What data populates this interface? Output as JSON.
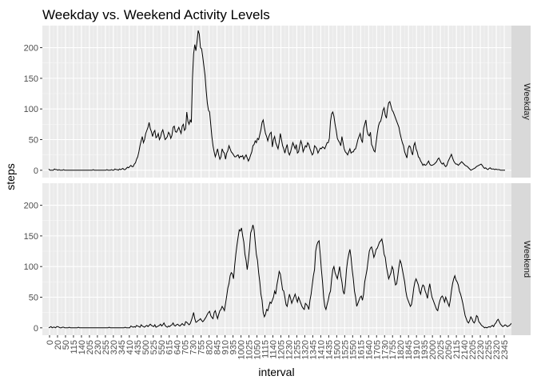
{
  "chart_data": {
    "type": "line",
    "title": "Weekday vs. Weekend Activity Levels",
    "xlabel": "interval",
    "ylabel": "steps",
    "ylim": [
      -12,
      236
    ],
    "y_ticks": [
      0,
      50,
      100,
      150,
      200
    ],
    "x_ticks": [
      "0",
      "20",
      "50",
      "115",
      "140",
      "205",
      "230",
      "255",
      "320",
      "345",
      "410",
      "435",
      "500",
      "525",
      "550",
      "615",
      "640",
      "705",
      "730",
      "755",
      "820",
      "845",
      "910",
      "935",
      "1000",
      "1025",
      "1050",
      "1115",
      "1140",
      "1205",
      "1230",
      "1255",
      "1320",
      "1345",
      "1410",
      "1435",
      "1500",
      "1525",
      "1550",
      "1615",
      "1640",
      "1705",
      "1730",
      "1755",
      "1820",
      "1845",
      "1910",
      "1935",
      "2000",
      "2025",
      "2050",
      "2115",
      "2140",
      "2205",
      "2230",
      "2255",
      "2320",
      "2345"
    ],
    "grid": true,
    "facets": [
      "Weekday",
      "Weekend"
    ],
    "series": [
      {
        "facet": "Weekday",
        "values": [
          2,
          0,
          0,
          0,
          0,
          2,
          1,
          1,
          0,
          1,
          0,
          0,
          0,
          1,
          0,
          0,
          0,
          0,
          0,
          0,
          0,
          0,
          0,
          0,
          0,
          0,
          0,
          0,
          0,
          0,
          0,
          0,
          0,
          0,
          0,
          0,
          0,
          0,
          0,
          1,
          0,
          0,
          0,
          0,
          0,
          0,
          0,
          0,
          0,
          0,
          0,
          1,
          0,
          0,
          0,
          1,
          0,
          0,
          2,
          1,
          1,
          0,
          2,
          1,
          2,
          3,
          1,
          1,
          3,
          5,
          4,
          6,
          8,
          6,
          6,
          10,
          12,
          18,
          22,
          30,
          40,
          48,
          55,
          45,
          50,
          60,
          65,
          70,
          78,
          68,
          63,
          55,
          62,
          65,
          53,
          55,
          60,
          50,
          54,
          62,
          66,
          58,
          50,
          52,
          55,
          62,
          59,
          52,
          57,
          70,
          72,
          63,
          62,
          66,
          70,
          65,
          60,
          72,
          75,
          65,
          68,
          95,
          80,
          75,
          82,
          78,
          150,
          190,
          205,
          195,
          210,
          228,
          222,
          200,
          198,
          185,
          170,
          155,
          130,
          110,
          98,
          95,
          75,
          55,
          40,
          30,
          22,
          28,
          35,
          25,
          18,
          22,
          35,
          30,
          28,
          18,
          28,
          32,
          40,
          35,
          30,
          28,
          25,
          22,
          22,
          24,
          25,
          20,
          23,
          22,
          24,
          18,
          22,
          25,
          20,
          15,
          19,
          25,
          30,
          40,
          42,
          48,
          45,
          52,
          50,
          58,
          66,
          78,
          82,
          70,
          60,
          55,
          48,
          55,
          60,
          62,
          38,
          50,
          55,
          45,
          40,
          35,
          45,
          60,
          50,
          40,
          35,
          28,
          36,
          42,
          30,
          25,
          30,
          38,
          45,
          40,
          35,
          42,
          28,
          30,
          40,
          48,
          42,
          30,
          35,
          40,
          38,
          45,
          42,
          35,
          30,
          25,
          28,
          40,
          38,
          35,
          28,
          32,
          36,
          35,
          38,
          37,
          35,
          40,
          45,
          45,
          52,
          80,
          92,
          95,
          88,
          75,
          65,
          52,
          48,
          45,
          40,
          55,
          45,
          35,
          30,
          28,
          25,
          30,
          35,
          28,
          30,
          30,
          34,
          35,
          42,
          50,
          55,
          60,
          50,
          45,
          68,
          75,
          82,
          65,
          58,
          56,
          62,
          42,
          38,
          32,
          30,
          45,
          60,
          72,
          78,
          80,
          88,
          98,
          102,
          90,
          85,
          100,
          110,
          112,
          105,
          98,
          95,
          90,
          85,
          80,
          75,
          70,
          60,
          52,
          45,
          40,
          30,
          25,
          20,
          35,
          40,
          38,
          30,
          25,
          40,
          45,
          35,
          30,
          22,
          20,
          15,
          12,
          8,
          10,
          8,
          9,
          12,
          15,
          10,
          8,
          8,
          9,
          10,
          12,
          14,
          18,
          20,
          16,
          12,
          10,
          12,
          8,
          6,
          8,
          14,
          18,
          22,
          26,
          20,
          15,
          12,
          10,
          10,
          8,
          10,
          12,
          14,
          12,
          10,
          8,
          7,
          6,
          4,
          2,
          0,
          1,
          2,
          3,
          4,
          6,
          7,
          8,
          9,
          10,
          8,
          5,
          3,
          4,
          2,
          1,
          3,
          4,
          2,
          2,
          2,
          1,
          2,
          1,
          1,
          1,
          0,
          0,
          0,
          0,
          0
        ]
      },
      {
        "facet": "Weekend",
        "values": [
          0,
          1,
          2,
          0,
          1,
          1,
          0,
          2,
          2,
          1,
          0,
          0,
          1,
          1,
          0,
          0,
          0,
          0,
          1,
          0,
          0,
          0,
          0,
          0,
          0,
          0,
          1,
          0,
          0,
          0,
          0,
          0,
          0,
          0,
          0,
          0,
          0,
          0,
          0,
          0,
          0,
          0,
          0,
          0,
          0,
          0,
          0,
          0,
          0,
          0,
          0,
          0,
          0,
          1,
          0,
          0,
          0,
          0,
          0,
          0,
          0,
          0,
          0,
          0,
          0,
          0,
          0,
          1,
          0,
          0,
          0,
          0,
          3,
          2,
          1,
          2,
          1,
          4,
          3,
          2,
          1,
          5,
          3,
          2,
          1,
          3,
          4,
          2,
          4,
          6,
          4,
          3,
          2,
          5,
          1,
          2,
          3,
          4,
          6,
          3,
          5,
          8,
          4,
          2,
          1,
          3,
          2,
          4,
          5,
          8,
          4,
          3,
          5,
          6,
          4,
          3,
          5,
          7,
          5,
          4,
          10,
          9,
          7,
          5,
          7,
          12,
          18,
          25,
          15,
          9,
          10,
          12,
          13,
          15,
          12,
          10,
          12,
          15,
          18,
          22,
          25,
          27,
          20,
          17,
          15,
          25,
          28,
          21,
          15,
          22,
          28,
          30,
          35,
          32,
          28,
          40,
          52,
          65,
          72,
          85,
          90,
          88,
          80,
          102,
          120,
          135,
          148,
          160,
          158,
          163,
          150,
          140,
          120,
          110,
          95,
          110,
          130,
          155,
          160,
          168,
          160,
          140,
          120,
          110,
          90,
          75,
          55,
          45,
          25,
          18,
          22,
          30,
          28,
          35,
          42,
          40,
          45,
          50,
          60,
          55,
          70,
          80,
          92,
          88,
          75,
          62,
          60,
          50,
          38,
          35,
          45,
          55,
          48,
          40,
          45,
          50,
          55,
          48,
          42,
          50,
          45,
          40,
          35,
          32,
          30,
          40,
          38,
          35,
          30,
          45,
          55,
          70,
          85,
          95,
          125,
          135,
          140,
          142,
          120,
          95,
          75,
          50,
          35,
          30,
          38,
          45,
          55,
          60,
          80,
          95,
          100,
          90,
          85,
          80,
          90,
          100,
          85,
          75,
          60,
          55,
          70,
          95,
          110,
          120,
          128,
          115,
          95,
          80,
          60,
          50,
          35,
          40,
          45,
          50,
          52,
          45,
          55,
          75,
          85,
          95,
          110,
          125,
          130,
          132,
          125,
          115,
          120,
          128,
          130,
          135,
          140,
          142,
          145,
          135,
          120,
          115,
          100,
          90,
          80,
          85,
          90,
          100,
          95,
          80,
          70,
          72,
          85,
          100,
          110,
          105,
          95,
          85,
          75,
          60,
          50,
          45,
          40,
          35,
          38,
          50,
          65,
          75,
          80,
          75,
          70,
          60,
          55,
          65,
          70,
          68,
          60,
          55,
          48,
          62,
          72,
          60,
          50,
          45,
          40,
          35,
          30,
          28,
          38,
          45,
          50,
          52,
          48,
          42,
          50,
          45,
          40,
          35,
          45,
          60,
          72,
          80,
          85,
          78,
          75,
          70,
          60,
          55,
          48,
          40,
          30,
          20,
          15,
          10,
          8,
          12,
          18,
          15,
          10,
          8,
          12,
          20,
          18,
          10,
          8,
          5,
          3,
          2,
          0,
          1,
          0,
          1,
          2,
          1,
          3,
          4,
          2,
          6,
          8,
          12,
          14,
          10,
          6,
          4,
          2,
          3,
          5,
          4,
          2,
          3,
          4,
          6,
          8,
          12,
          10,
          6,
          4,
          2,
          1,
          0
        ]
      }
    ]
  }
}
